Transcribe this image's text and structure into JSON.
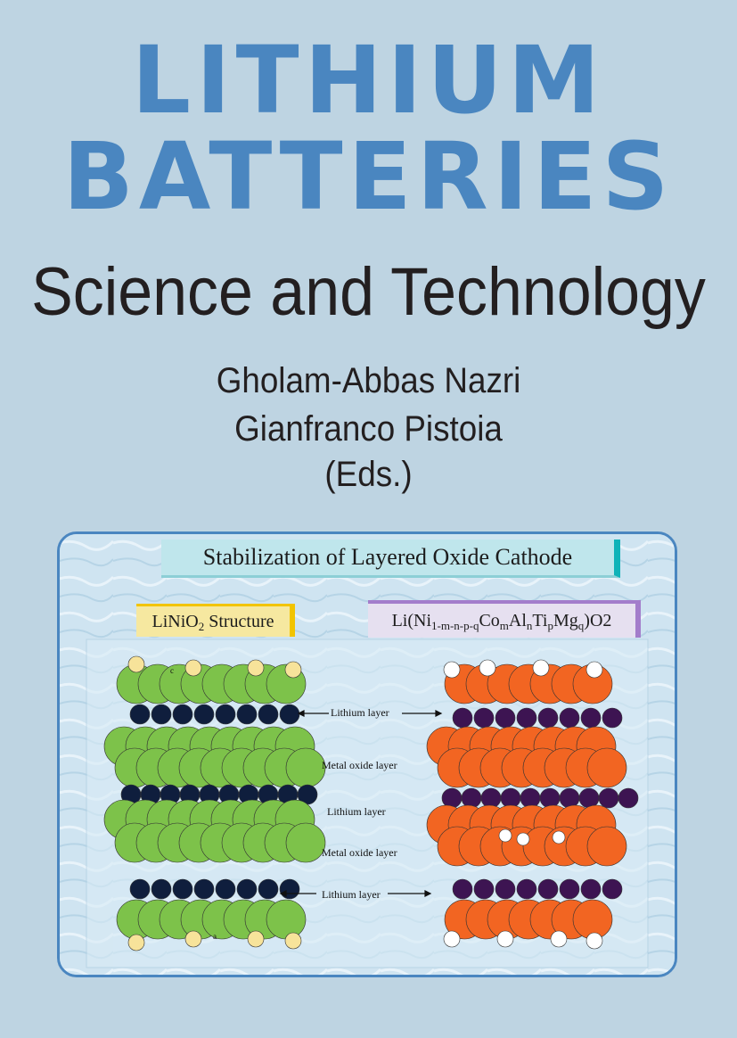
{
  "cover": {
    "title_line1": "LITHIUM",
    "title_line2": "BATTERIES",
    "subtitle": "Science and Technology",
    "editors": [
      "Gholam-Abbas Nazri",
      "Gianfranco Pistoia",
      "(Eds.)"
    ]
  },
  "figure": {
    "banner": "Stabilization of Layered Oxide Cathode",
    "left_label": {
      "base": "LiNiO",
      "sub": "2",
      "rest": " Structure"
    },
    "right_label": {
      "p1": "Li(Ni",
      "s1": "1-m-n-p-q",
      "p2": "Co",
      "s2": "m",
      "p3": "Al",
      "s3": "n",
      "p4": "Ti",
      "s4": "p",
      "p5": "Mg",
      "s5": "q",
      "p6": ")O2"
    },
    "layer_labels": [
      "Lithium layer",
      "Metal oxide layer",
      "Lithium layer",
      "Metal oxide layer",
      "Lithium layer"
    ],
    "axis_labels": [
      "c",
      "a"
    ]
  },
  "colors": {
    "background": "#bed4e2",
    "title": "#4a86c0",
    "green_atom": "#7dc24a",
    "navy_atom": "#0f1e3d",
    "orange_atom": "#f26522",
    "purple_atom": "#3d1452",
    "yellow_atom": "#f7e39a"
  }
}
